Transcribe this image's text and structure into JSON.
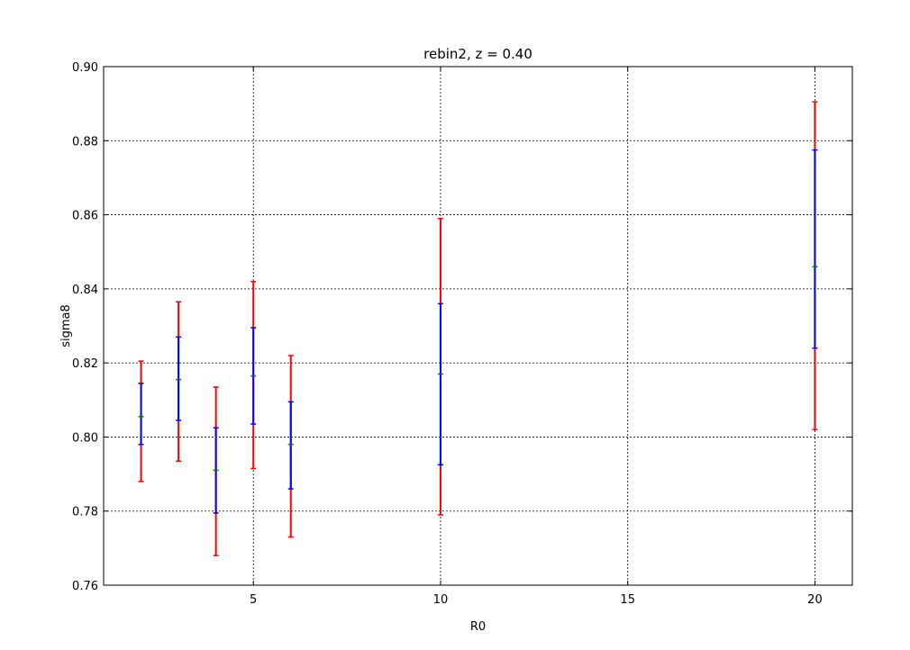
{
  "chart_data": {
    "type": "scatter",
    "title": "rebin2, z = 0.40",
    "xlabel": "R0",
    "ylabel": "sigma8",
    "xlim": [
      1,
      21
    ],
    "ylim": [
      0.76,
      0.9
    ],
    "xticks": [
      5,
      10,
      15,
      20
    ],
    "yticks": [
      0.76,
      0.78,
      0.8,
      0.82,
      0.84,
      0.86,
      0.88,
      0.9
    ],
    "ytick_labels": [
      "0.76",
      "0.78",
      "0.80",
      "0.82",
      "0.84",
      "0.86",
      "0.88",
      "0.90"
    ],
    "xtick_labels": [
      "5",
      "10",
      "15",
      "20"
    ],
    "grid": true,
    "series": [
      {
        "color": "#ff0000",
        "points": [
          {
            "x": 2,
            "low": 0.788,
            "high": 0.8205
          },
          {
            "x": 3,
            "low": 0.7935,
            "high": 0.8365
          },
          {
            "x": 4,
            "low": 0.768,
            "high": 0.8135
          },
          {
            "x": 5,
            "low": 0.7915,
            "high": 0.842
          },
          {
            "x": 6,
            "low": 0.773,
            "high": 0.822
          },
          {
            "x": 10,
            "low": 0.779,
            "high": 0.859
          },
          {
            "x": 20,
            "low": 0.802,
            "high": 0.8905
          }
        ]
      },
      {
        "color": "#0000ff",
        "points": [
          {
            "x": 2,
            "low": 0.798,
            "high": 0.8145
          },
          {
            "x": 3,
            "low": 0.8045,
            "high": 0.827
          },
          {
            "x": 4,
            "low": 0.7795,
            "high": 0.8025
          },
          {
            "x": 5,
            "low": 0.8035,
            "high": 0.8295
          },
          {
            "x": 6,
            "low": 0.786,
            "high": 0.8095
          },
          {
            "x": 10,
            "low": 0.7925,
            "high": 0.836
          },
          {
            "x": 20,
            "low": 0.824,
            "high": 0.8775
          }
        ]
      },
      {
        "color": "#008000",
        "points": [
          {
            "x": 2,
            "y": 0.8055
          },
          {
            "x": 3,
            "y": 0.8155
          },
          {
            "x": 4,
            "y": 0.791
          },
          {
            "x": 5,
            "y": 0.8165
          },
          {
            "x": 6,
            "y": 0.798
          },
          {
            "x": 10,
            "y": 0.817
          },
          {
            "x": 20,
            "y": 0.846
          }
        ]
      }
    ]
  }
}
